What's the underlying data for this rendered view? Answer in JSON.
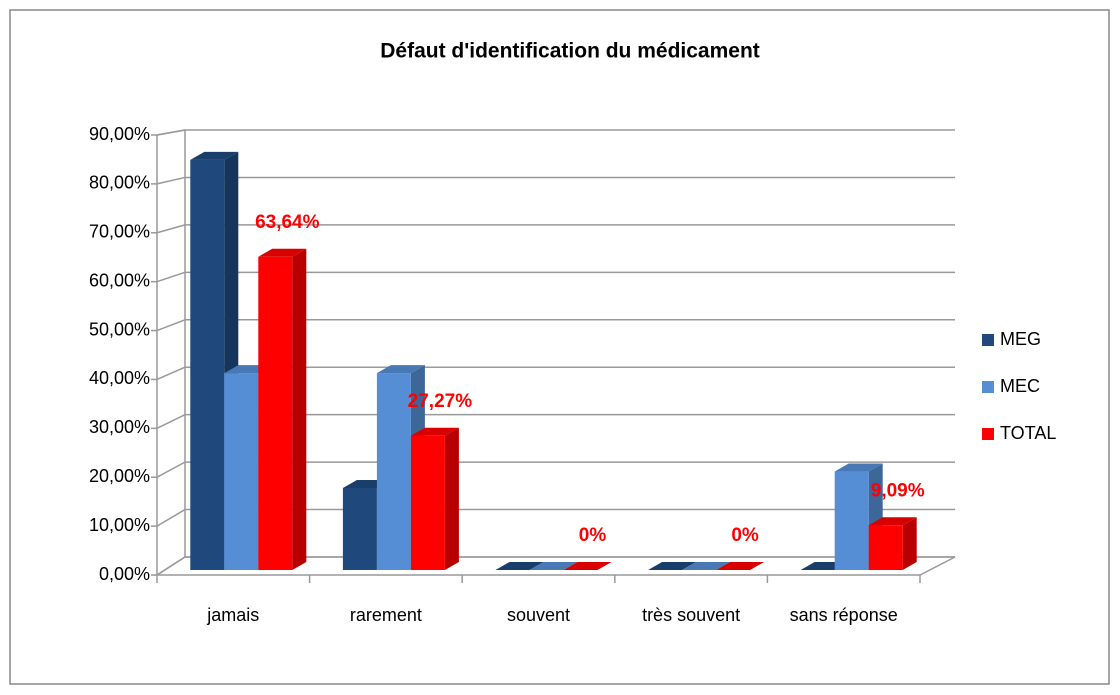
{
  "chart_data": {
    "type": "bar3d",
    "title": "Défaut d'identification du médicament",
    "categories": [
      "jamais",
      "rarement",
      "souvent",
      "très souvent",
      "sans réponse"
    ],
    "series": [
      {
        "name": "MEG",
        "color": "#1f497d",
        "values": [
          83.33,
          16.67,
          0,
          0,
          0
        ]
      },
      {
        "name": "MEC",
        "color": "#558ed5",
        "values": [
          40,
          40,
          0,
          0,
          20
        ]
      },
      {
        "name": "TOTAL",
        "color": "#ff0000",
        "values": [
          63.64,
          27.27,
          0,
          0,
          9.09
        ],
        "value_labels": [
          "63,64%",
          "27,27%",
          "0%",
          "0%",
          "9,09%"
        ]
      }
    ],
    "ylim": [
      0,
      90
    ],
    "yticks": [
      {
        "value": 0,
        "label": "0,00%"
      },
      {
        "value": 10,
        "label": "10,00%"
      },
      {
        "value": 20,
        "label": "20,00%"
      },
      {
        "value": 30,
        "label": "30,00%"
      },
      {
        "value": 40,
        "label": "40,00%"
      },
      {
        "value": 50,
        "label": "50,00%"
      },
      {
        "value": 60,
        "label": "60,00%"
      },
      {
        "value": 70,
        "label": "70,00%"
      },
      {
        "value": 80,
        "label": "80,00%"
      },
      {
        "value": 90,
        "label": "90,00%"
      }
    ],
    "grid": true,
    "legend": "right"
  }
}
